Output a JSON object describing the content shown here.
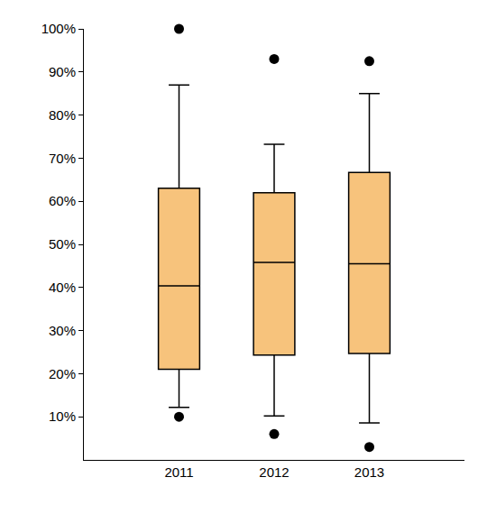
{
  "chart_data": {
    "type": "box",
    "categories": [
      "2011",
      "2012",
      "2013"
    ],
    "q1": [
      21,
      24.3,
      24.7
    ],
    "median": [
      40.4,
      45.8,
      45.5
    ],
    "q3": [
      63,
      62,
      66.7
    ],
    "lowerfence": [
      12.2,
      10.2,
      8.6
    ],
    "upperfence": [
      87,
      73.2,
      85
    ],
    "outliers": [
      [
        100,
        10
      ],
      [
        93,
        6
      ],
      [
        92.5,
        3
      ]
    ],
    "color": "#f7c37c",
    "ylim": [
      0,
      100
    ],
    "yticks": [
      {
        "value": 10,
        "label": "10%"
      },
      {
        "value": 20,
        "label": "20%"
      },
      {
        "value": 30,
        "label": "30%"
      },
      {
        "value": 40,
        "label": "40%"
      },
      {
        "value": 50,
        "label": "50%"
      },
      {
        "value": 60,
        "label": "60%"
      },
      {
        "value": 70,
        "label": "70%"
      },
      {
        "value": 80,
        "label": "80%"
      },
      {
        "value": 90,
        "label": "90%"
      },
      {
        "value": 100,
        "label": "100%"
      }
    ],
    "grid": false
  }
}
